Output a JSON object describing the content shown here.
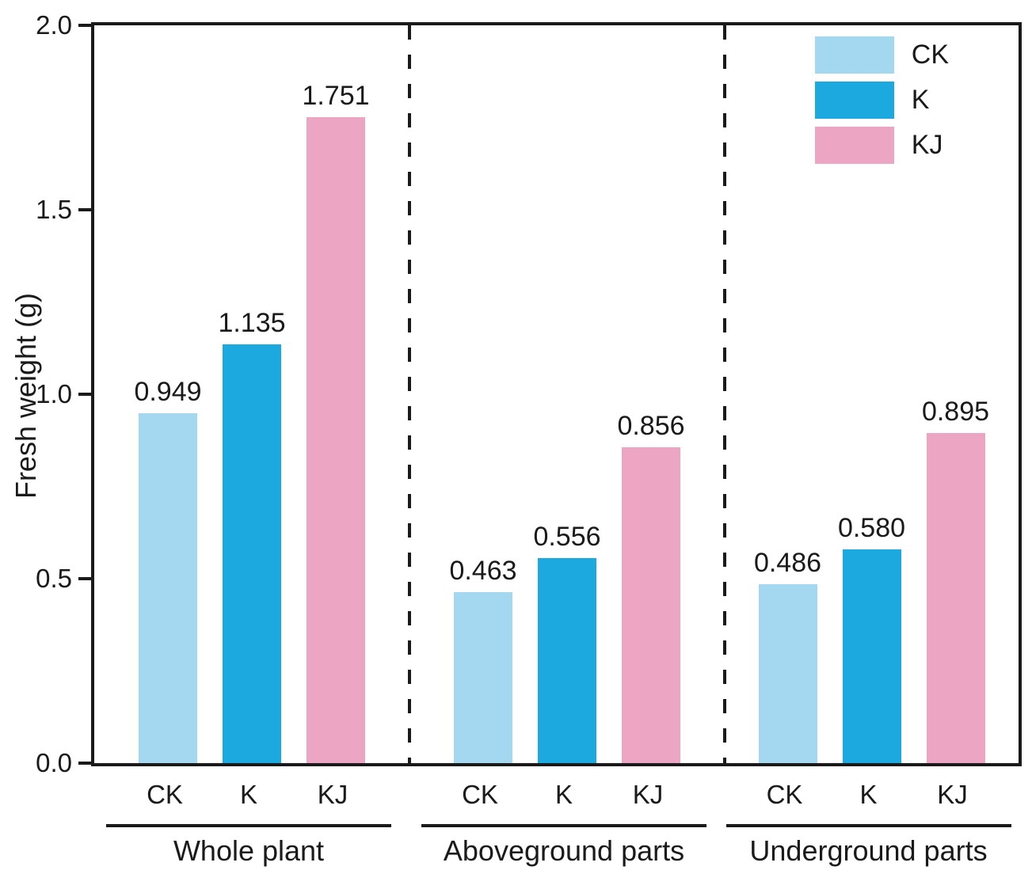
{
  "chart_data": {
    "type": "bar",
    "ylabel": "Fresh weight (g)",
    "xlabel": "",
    "ylim": [
      0.0,
      2.0
    ],
    "ytick_labels": [
      "2.0",
      "1.5",
      "1.0",
      "0.5",
      "0.0"
    ],
    "grid": false,
    "legend_position": "top-right",
    "axis_color": "#1a1a1a",
    "categories": [
      "CK",
      "K",
      "KJ"
    ],
    "series_colors": [
      "#A4D8F0",
      "#1CA9DF",
      "#ECA5C3"
    ],
    "groups": [
      {
        "label": "Whole plant",
        "categories": [
          "CK",
          "K",
          "KJ"
        ],
        "values": [
          "0.949",
          "1.135",
          "1.751"
        ]
      },
      {
        "label": "Aboveground parts",
        "categories": [
          "CK",
          "K",
          "KJ"
        ],
        "values": [
          "0.463",
          "0.556",
          "0.856"
        ]
      },
      {
        "label": "Underground parts",
        "categories": [
          "CK",
          "K",
          "KJ"
        ],
        "values": [
          "0.486",
          "0.580",
          "0.895"
        ]
      }
    ],
    "legend": [
      {
        "label": "CK",
        "color": "#A4D8F0"
      },
      {
        "label": "K",
        "color": "#1CA9DF"
      },
      {
        "label": "KJ",
        "color": "#ECA5C3"
      }
    ]
  }
}
